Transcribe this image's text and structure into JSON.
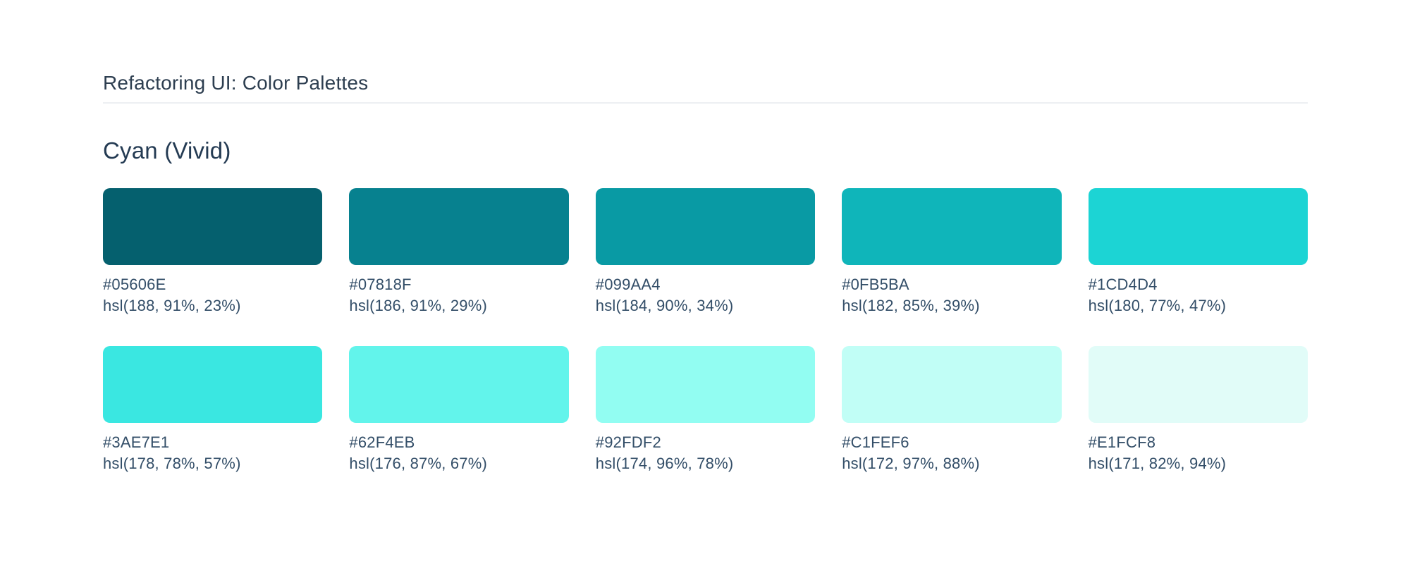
{
  "page": {
    "title": "Refactoring UI: Color Palettes"
  },
  "palette": {
    "name": "Cyan (Vivid)",
    "swatches": [
      {
        "hex": "#05606E",
        "hsl": "hsl(188, 91%, 23%)"
      },
      {
        "hex": "#07818F",
        "hsl": "hsl(186, 91%, 29%)"
      },
      {
        "hex": "#099AA4",
        "hsl": "hsl(184, 90%, 34%)"
      },
      {
        "hex": "#0FB5BA",
        "hsl": "hsl(182, 85%, 39%)"
      },
      {
        "hex": "#1CD4D4",
        "hsl": "hsl(180, 77%, 47%)"
      },
      {
        "hex": "#3AE7E1",
        "hsl": "hsl(178, 78%, 57%)"
      },
      {
        "hex": "#62F4EB",
        "hsl": "hsl(176, 87%, 67%)"
      },
      {
        "hex": "#92FDF2",
        "hsl": "hsl(174, 96%, 78%)"
      },
      {
        "hex": "#C1FEF6",
        "hsl": "hsl(172, 97%, 88%)"
      },
      {
        "hex": "#E1FCF8",
        "hsl": "hsl(171, 82%, 94%)"
      }
    ]
  },
  "colors": {
    "background": "#FFFFFF",
    "header_text": "#2D3E50",
    "heading_text": "#243B53",
    "label_text": "#334E68",
    "divider": "#EDEFF2"
  }
}
